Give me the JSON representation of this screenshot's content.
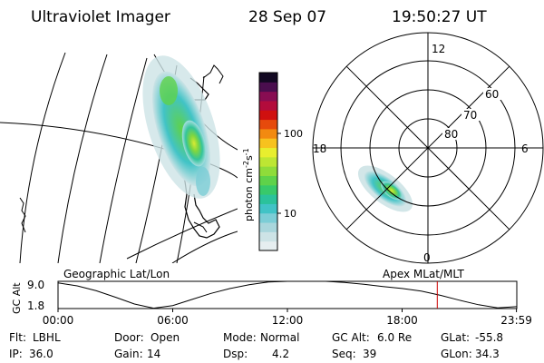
{
  "header": {
    "title": "Ultraviolet Imager",
    "date": "28 Sep 07",
    "time": "19:50:27 UT"
  },
  "colorbar": {
    "label_main": "photon cm",
    "label_sup1": "-2",
    "label_s": "s",
    "label_sup2": "-1",
    "ticks": [
      "100",
      "10"
    ],
    "colors": [
      "#e6eef0",
      "#cde3e6",
      "#a9d6dc",
      "#7ccdd6",
      "#41c3c6",
      "#2bc29b",
      "#38c96a",
      "#5fd24a",
      "#8fdc3a",
      "#bde633",
      "#e8ee2e",
      "#f7c21e",
      "#f28a10",
      "#e64a0c",
      "#d0100f",
      "#b30c3c",
      "#880d52",
      "#4a0e4e",
      "#120822"
    ]
  },
  "left_panel": {
    "label": "Geographic Lat/Lon"
  },
  "polar": {
    "label": "Apex MLat/MLT",
    "mlt_labels": {
      "top": "12",
      "left": "18",
      "right": "6",
      "bottom": "0"
    },
    "lat_labels": [
      "60",
      "70",
      "80"
    ]
  },
  "timeline": {
    "ylabel": "GC Alt",
    "y_ticks": [
      "9.0",
      "1.8"
    ],
    "x_ticks": [
      "00:00",
      "06:00",
      "12:00",
      "18:00",
      "23:59"
    ],
    "current_color": "#cc0000"
  },
  "chart_data": {
    "type": "line",
    "title": "",
    "xlabel": "",
    "ylabel": "GC Alt",
    "x": [
      "00:00",
      "01:00",
      "02:00",
      "03:00",
      "04:00",
      "05:00",
      "06:00",
      "07:00",
      "08:00",
      "09:00",
      "10:00",
      "11:00",
      "12:00",
      "13:00",
      "14:00",
      "15:00",
      "16:00",
      "17:00",
      "18:00",
      "19:00",
      "20:00",
      "21:00",
      "22:00",
      "23:00",
      "23:59"
    ],
    "series": [
      {
        "values": [
          8.6,
          7.8,
          6.5,
          4.8,
          3.0,
          1.9,
          2.6,
          4.2,
          5.8,
          7.1,
          8.1,
          8.8,
          9.1,
          9.2,
          9.0,
          8.7,
          8.2,
          7.6,
          7.1,
          6.4,
          5.3,
          4.0,
          2.8,
          2.0,
          2.3
        ]
      }
    ],
    "ylim": [
      1.8,
      9.0
    ],
    "current_time_hours": 19.84
  },
  "footer": {
    "row1": [
      {
        "key": "Flt:",
        "value": "LBHL"
      },
      {
        "key": "Door:",
        "value": "Open"
      },
      {
        "key": "Mode:",
        "value": "Normal"
      },
      {
        "key": "GC Alt:",
        "value": "6.0 Re"
      },
      {
        "key": "GLat:",
        "value": "-55.8"
      }
    ],
    "row2": [
      {
        "key": "IP:",
        "value": "36.0"
      },
      {
        "key": "Gain:",
        "value": "14"
      },
      {
        "key": "Dsp:",
        "value": "4.2"
      },
      {
        "key": "Seq:",
        "value": "39"
      },
      {
        "key": "GLon:",
        "value": "34.3"
      }
    ]
  }
}
